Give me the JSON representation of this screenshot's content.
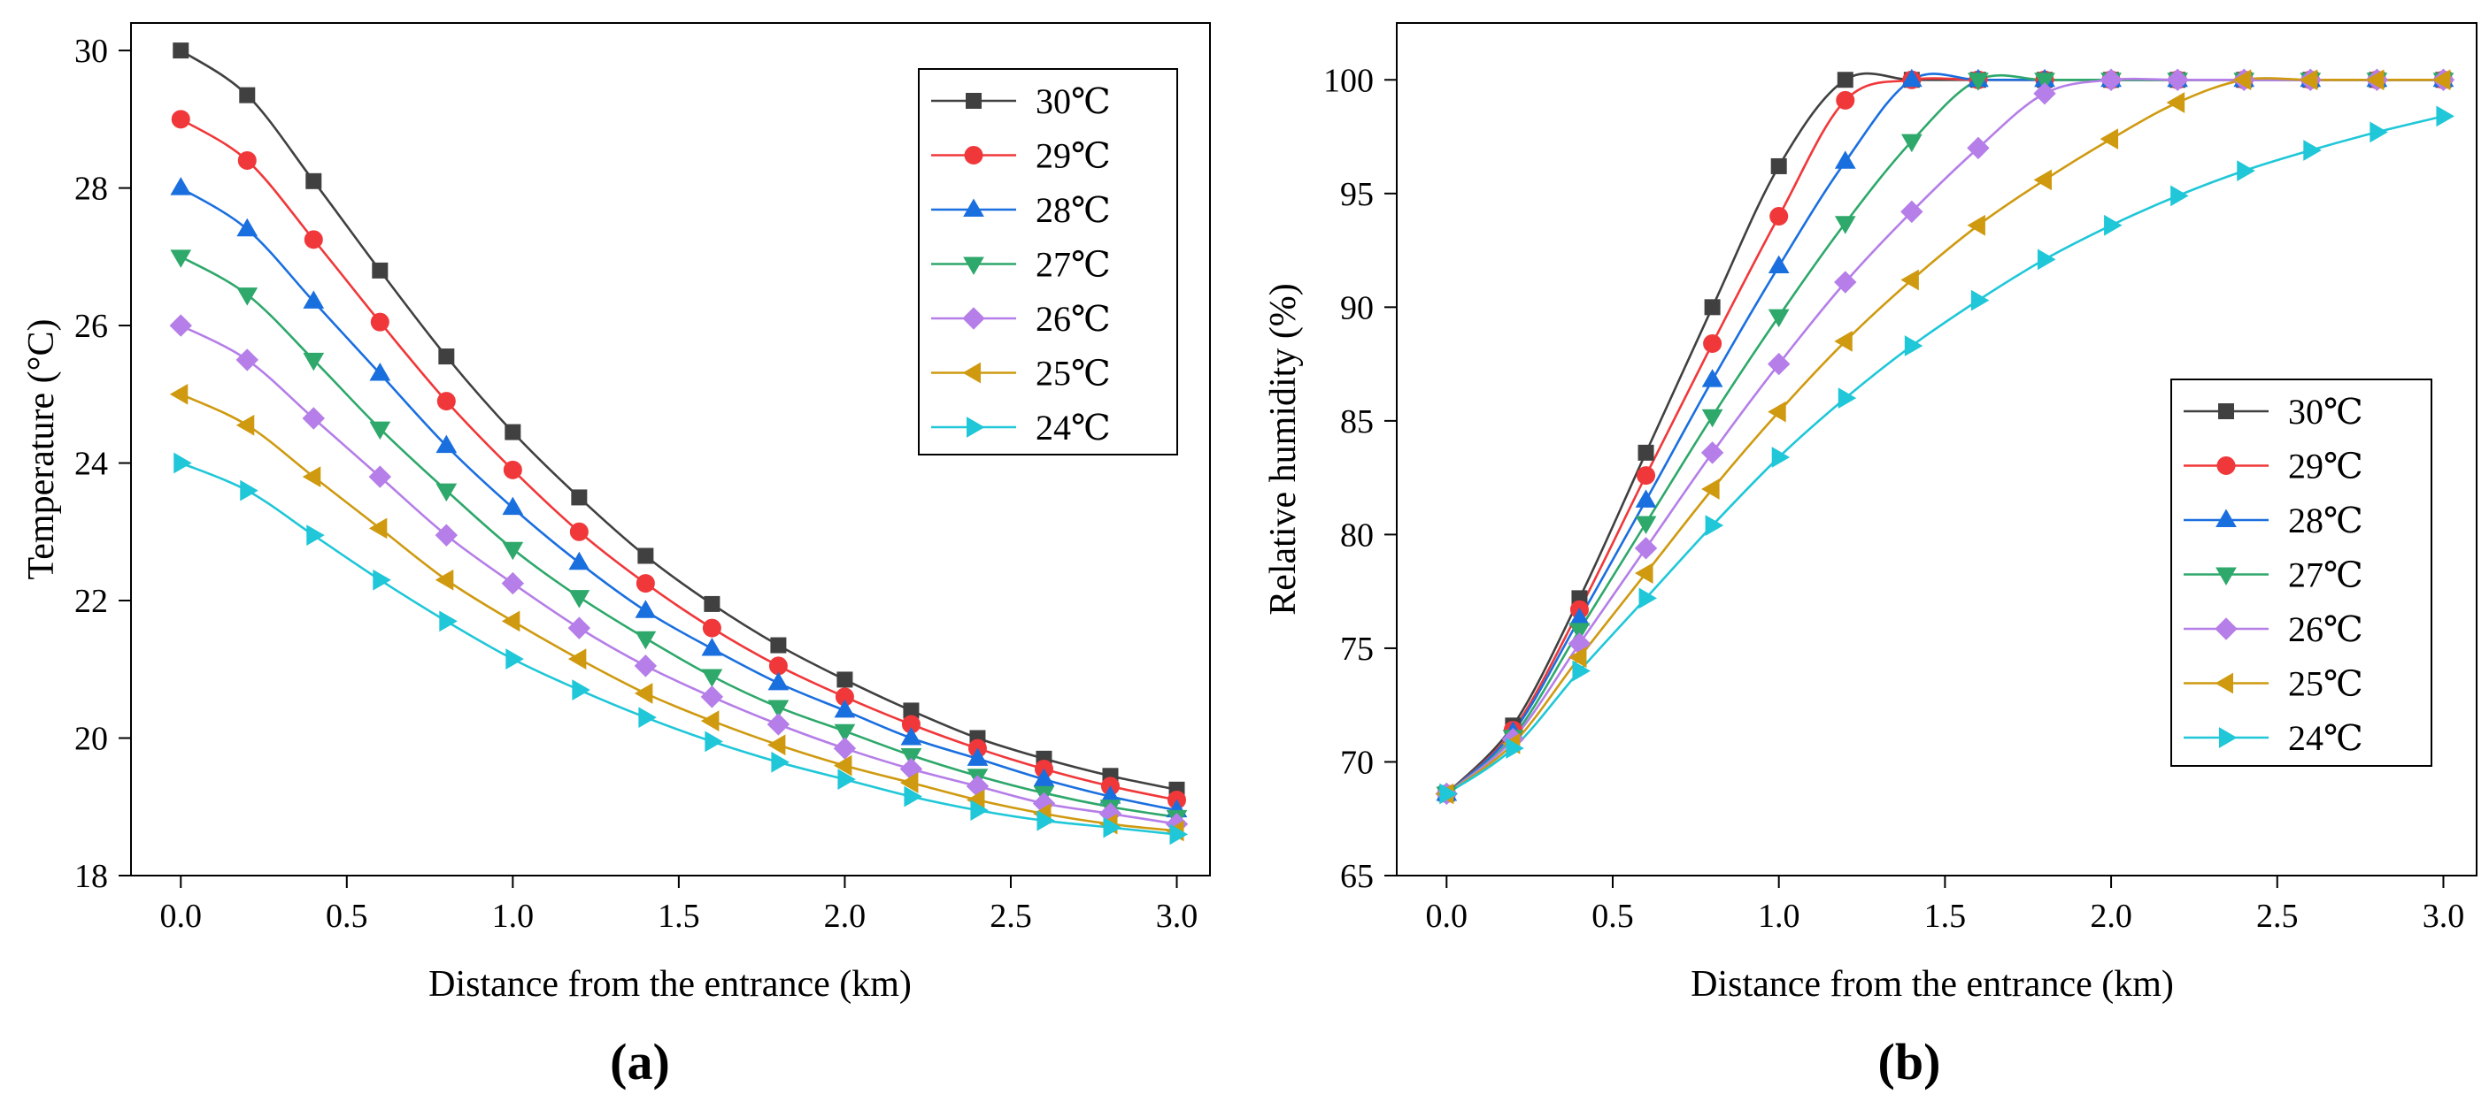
{
  "figure": {
    "panel_labels": [
      "(a)",
      "(b)"
    ]
  },
  "chart_data": [
    {
      "type": "line",
      "panel": "(a)",
      "title": "",
      "xlabel": "Distance from the entrance (km)",
      "ylabel": "Temperature (°C)",
      "xlim": [
        -0.15,
        3.1
      ],
      "ylim": [
        18,
        30.4
      ],
      "xticks": [
        0.0,
        0.5,
        1.0,
        1.5,
        2.0,
        2.5,
        3.0
      ],
      "xtick_labels": [
        "0.0",
        "0.5",
        "1.0",
        "1.5",
        "2.0",
        "2.5",
        "3.0"
      ],
      "yticks": [
        18,
        20,
        22,
        24,
        26,
        28,
        30
      ],
      "ytick_labels": [
        "18",
        "20",
        "22",
        "24",
        "26",
        "28",
        "30"
      ],
      "grid": false,
      "legend_position": "top-right",
      "x": [
        0.0,
        0.2,
        0.4,
        0.6,
        0.8,
        1.0,
        1.2,
        1.4,
        1.6,
        1.8,
        2.0,
        2.2,
        2.4,
        2.6,
        2.8,
        3.0
      ],
      "series": [
        {
          "name": "30℃",
          "color": "#404040",
          "marker": "square",
          "values": [
            30.0,
            29.35,
            28.1,
            26.8,
            25.55,
            24.45,
            23.5,
            22.65,
            21.95,
            21.35,
            20.85,
            20.4,
            20.0,
            19.7,
            19.45,
            19.25
          ]
        },
        {
          "name": "29℃",
          "color": "#f0383a",
          "marker": "circle",
          "values": [
            29.0,
            28.4,
            27.25,
            26.05,
            24.9,
            23.9,
            23.0,
            22.25,
            21.6,
            21.05,
            20.6,
            20.2,
            19.85,
            19.55,
            19.3,
            19.1
          ]
        },
        {
          "name": "28℃",
          "color": "#1a6fdf",
          "marker": "triangle-up",
          "values": [
            28.0,
            27.4,
            26.35,
            25.3,
            24.25,
            23.35,
            22.55,
            21.85,
            21.3,
            20.8,
            20.4,
            20.0,
            19.7,
            19.4,
            19.15,
            18.95
          ]
        },
        {
          "name": "27℃",
          "color": "#2ea86b",
          "marker": "triangle-down",
          "values": [
            27.0,
            26.45,
            25.5,
            24.5,
            23.6,
            22.75,
            22.05,
            21.45,
            20.9,
            20.45,
            20.1,
            19.75,
            19.45,
            19.2,
            19.0,
            18.85
          ]
        },
        {
          "name": "26℃",
          "color": "#b57ee8",
          "marker": "diamond",
          "values": [
            26.0,
            25.5,
            24.65,
            23.8,
            22.95,
            22.25,
            21.6,
            21.05,
            20.6,
            20.2,
            19.85,
            19.55,
            19.3,
            19.05,
            18.9,
            18.75
          ]
        },
        {
          "name": "25℃",
          "color": "#cf9a10",
          "marker": "triangle-left",
          "values": [
            25.0,
            24.55,
            23.8,
            23.05,
            22.3,
            21.7,
            21.15,
            20.65,
            20.25,
            19.9,
            19.6,
            19.35,
            19.1,
            18.9,
            18.75,
            18.65
          ]
        },
        {
          "name": "24℃",
          "color": "#1fc7d8",
          "marker": "triangle-right",
          "values": [
            24.0,
            23.6,
            22.95,
            22.3,
            21.7,
            21.15,
            20.7,
            20.3,
            19.95,
            19.65,
            19.4,
            19.15,
            18.95,
            18.8,
            18.7,
            18.6
          ]
        }
      ]
    },
    {
      "type": "line",
      "panel": "(b)",
      "title": "",
      "xlabel": "Distance from the entrance (km)",
      "ylabel": "Relative humidity (%)",
      "xlim": [
        -0.15,
        3.1
      ],
      "ylim": [
        65,
        102.5
      ],
      "xticks": [
        0.0,
        0.5,
        1.0,
        1.5,
        2.0,
        2.5,
        3.0
      ],
      "xtick_labels": [
        "0.0",
        "0.5",
        "1.0",
        "1.5",
        "2.0",
        "2.5",
        "3.0"
      ],
      "yticks": [
        65,
        70,
        75,
        80,
        85,
        90,
        95,
        100
      ],
      "ytick_labels": [
        "65",
        "70",
        "75",
        "80",
        "85",
        "90",
        "95",
        "100"
      ],
      "grid": false,
      "legend_position": "center-right",
      "x": [
        0.0,
        0.2,
        0.4,
        0.6,
        0.8,
        1.0,
        1.2,
        1.4,
        1.6,
        1.8,
        2.0,
        2.2,
        2.4,
        2.6,
        2.8,
        3.0
      ],
      "series": [
        {
          "name": "30℃",
          "color": "#404040",
          "marker": "square",
          "values": [
            68.6,
            71.6,
            77.2,
            83.6,
            90.0,
            96.2,
            100.0,
            100.0,
            100.0,
            100.0,
            100.0,
            100.0,
            100.0,
            100.0,
            100.0,
            100.0
          ]
        },
        {
          "name": "29℃",
          "color": "#f0383a",
          "marker": "circle",
          "values": [
            68.6,
            71.4,
            76.7,
            82.6,
            88.4,
            94.0,
            99.1,
            100.0,
            100.0,
            100.0,
            100.0,
            100.0,
            100.0,
            100.0,
            100.0,
            100.0
          ]
        },
        {
          "name": "28℃",
          "color": "#1a6fdf",
          "marker": "triangle-up",
          "values": [
            68.6,
            71.3,
            76.3,
            81.5,
            86.8,
            91.8,
            96.4,
            100.0,
            100.0,
            100.0,
            100.0,
            100.0,
            100.0,
            100.0,
            100.0,
            100.0
          ]
        },
        {
          "name": "27℃",
          "color": "#2ea86b",
          "marker": "triangle-down",
          "values": [
            68.6,
            71.1,
            75.8,
            80.5,
            85.2,
            89.6,
            93.7,
            97.3,
            100.0,
            100.0,
            100.0,
            100.0,
            100.0,
            100.0,
            100.0,
            100.0
          ]
        },
        {
          "name": "26℃",
          "color": "#b57ee8",
          "marker": "diamond",
          "values": [
            68.6,
            71.0,
            75.2,
            79.4,
            83.6,
            87.5,
            91.1,
            94.2,
            97.0,
            99.4,
            100.0,
            100.0,
            100.0,
            100.0,
            100.0,
            100.0
          ]
        },
        {
          "name": "25℃",
          "color": "#cf9a10",
          "marker": "triangle-left",
          "values": [
            68.6,
            70.8,
            74.6,
            78.3,
            82.0,
            85.4,
            88.5,
            91.2,
            93.6,
            95.6,
            97.4,
            99.0,
            100.0,
            100.0,
            100.0,
            100.0
          ]
        },
        {
          "name": "24℃",
          "color": "#1fc7d8",
          "marker": "triangle-right",
          "values": [
            68.6,
            70.6,
            74.0,
            77.2,
            80.4,
            83.4,
            86.0,
            88.3,
            90.3,
            92.1,
            93.6,
            94.9,
            96.0,
            96.9,
            97.7,
            98.4
          ]
        }
      ]
    }
  ]
}
